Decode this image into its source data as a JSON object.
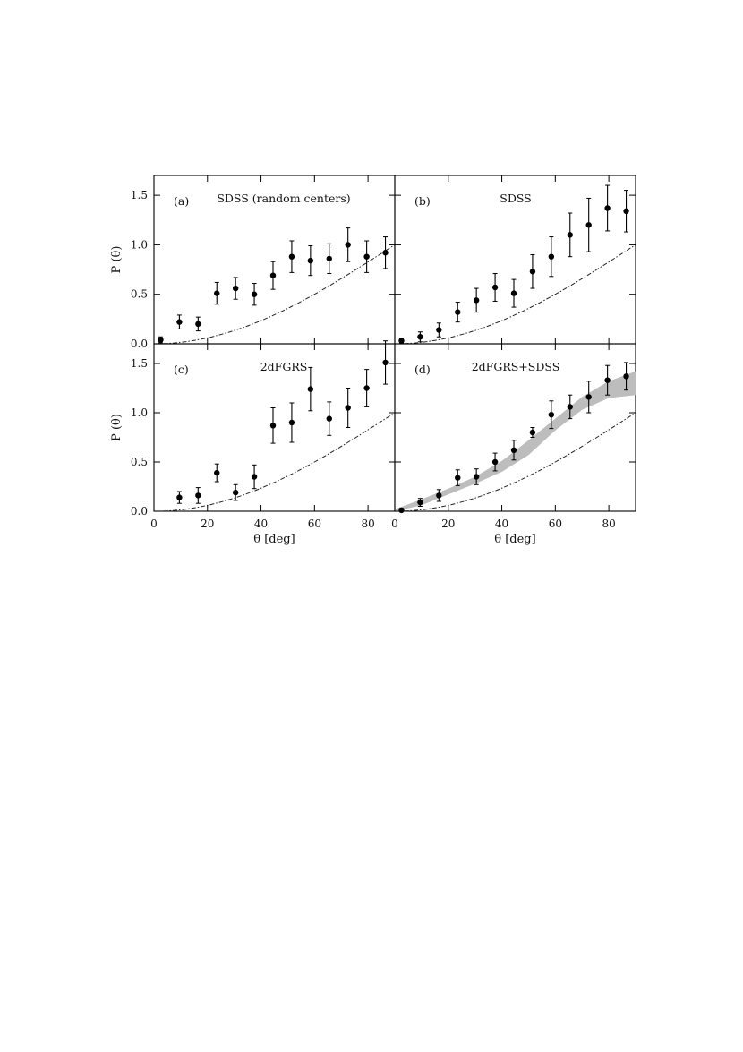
{
  "chart_data": [
    {
      "type": "scatter",
      "panel": "(a)",
      "title": "SDSS (random centers)",
      "xlabel": "",
      "ylabel": "P (θ)",
      "xlim": [
        0,
        90
      ],
      "ylim": [
        0,
        1.7
      ],
      "x_ticks": [],
      "y_ticks": [
        "0.0",
        "0.5",
        "1.0",
        "1.5"
      ],
      "y_tick_values": [
        0,
        0.5,
        1.0,
        1.5
      ],
      "x": [
        2.5,
        9.5,
        16.5,
        23.5,
        30.5,
        37.5,
        44.5,
        51.5,
        58.5,
        65.5,
        72.5,
        79.5,
        86.5
      ],
      "y": [
        0.04,
        0.22,
        0.2,
        0.51,
        0.56,
        0.5,
        0.69,
        0.88,
        0.84,
        0.86,
        1.0,
        0.88,
        0.92
      ],
      "err": [
        0.03,
        0.07,
        0.07,
        0.11,
        0.11,
        0.11,
        0.14,
        0.16,
        0.15,
        0.15,
        0.17,
        0.16,
        0.16
      ],
      "model_curve": "1 - cos(theta)",
      "band": false,
      "grid": false
    },
    {
      "type": "scatter",
      "panel": "(b)",
      "title": "SDSS",
      "xlabel": "",
      "ylabel": "",
      "xlim": [
        0,
        90
      ],
      "ylim": [
        0,
        1.7
      ],
      "x_ticks": [],
      "y_ticks": [],
      "y_tick_values": [
        0,
        0.5,
        1.0,
        1.5
      ],
      "x": [
        2.5,
        9.5,
        16.5,
        23.5,
        30.5,
        37.5,
        44.5,
        51.5,
        58.5,
        65.5,
        72.5,
        79.5,
        86.5
      ],
      "y": [
        0.03,
        0.07,
        0.14,
        0.32,
        0.44,
        0.57,
        0.51,
        0.73,
        0.88,
        1.1,
        1.2,
        1.37,
        1.34
      ],
      "err": [
        0.02,
        0.05,
        0.07,
        0.1,
        0.12,
        0.14,
        0.14,
        0.17,
        0.2,
        0.22,
        0.27,
        0.23,
        0.21
      ],
      "model_curve": "1 - cos(theta)",
      "band": false,
      "grid": false
    },
    {
      "type": "scatter",
      "panel": "(c)",
      "title": "2dFGRS",
      "xlabel": "θ [deg]",
      "ylabel": "P (θ)",
      "xlim": [
        0,
        90
      ],
      "ylim": [
        0,
        1.7
      ],
      "x_ticks": [
        "0",
        "20",
        "40",
        "60",
        "80"
      ],
      "x_tick_values": [
        0,
        20,
        40,
        60,
        80
      ],
      "y_ticks": [
        "0.0",
        "0.5",
        "1.0",
        "1.5"
      ],
      "y_tick_values": [
        0,
        0.5,
        1.0,
        1.5
      ],
      "x": [
        9.5,
        16.5,
        23.5,
        30.5,
        37.5,
        44.5,
        51.5,
        58.5,
        65.5,
        72.5,
        79.5,
        86.5
      ],
      "y": [
        0.14,
        0.16,
        0.39,
        0.19,
        0.35,
        0.87,
        0.9,
        1.24,
        0.94,
        1.05,
        1.25,
        1.51
      ],
      "err": [
        0.06,
        0.08,
        0.09,
        0.08,
        0.12,
        0.18,
        0.2,
        0.22,
        0.17,
        0.2,
        0.19,
        0.22
      ],
      "model_curve": "1 - cos(theta)",
      "band": false,
      "grid": false
    },
    {
      "type": "scatter",
      "panel": "(d)",
      "title": "2dFGRS+SDSS",
      "xlabel": "θ [deg]",
      "ylabel": "",
      "xlim": [
        0,
        90
      ],
      "ylim": [
        0,
        1.7
      ],
      "x_ticks": [
        "0",
        "20",
        "40",
        "60",
        "80"
      ],
      "x_tick_values": [
        0,
        20,
        40,
        60,
        80
      ],
      "y_ticks": [],
      "y_tick_values": [
        0,
        0.5,
        1.0,
        1.5
      ],
      "x": [
        2.5,
        9.5,
        16.5,
        23.5,
        30.5,
        37.5,
        44.5,
        51.5,
        58.5,
        65.5,
        72.5,
        79.5,
        86.5
      ],
      "y": [
        0.01,
        0.09,
        0.16,
        0.34,
        0.35,
        0.5,
        0.62,
        0.8,
        0.98,
        1.06,
        1.16,
        1.33,
        1.37
      ],
      "err": [
        0.02,
        0.04,
        0.06,
        0.08,
        0.08,
        0.09,
        0.1,
        0.05,
        0.14,
        0.12,
        0.16,
        0.15,
        0.14
      ],
      "model_curve": "1 - cos(theta)",
      "band": true,
      "band_color": "#bdbdbd",
      "band_x": [
        0,
        10,
        20,
        30,
        40,
        50,
        60,
        70,
        80,
        90
      ],
      "band_lower": [
        0.0,
        0.06,
        0.17,
        0.28,
        0.4,
        0.57,
        0.82,
        1.03,
        1.15,
        1.18
      ],
      "band_upper": [
        0.02,
        0.12,
        0.23,
        0.35,
        0.51,
        0.72,
        0.94,
        1.16,
        1.32,
        1.42
      ],
      "grid": false
    }
  ]
}
